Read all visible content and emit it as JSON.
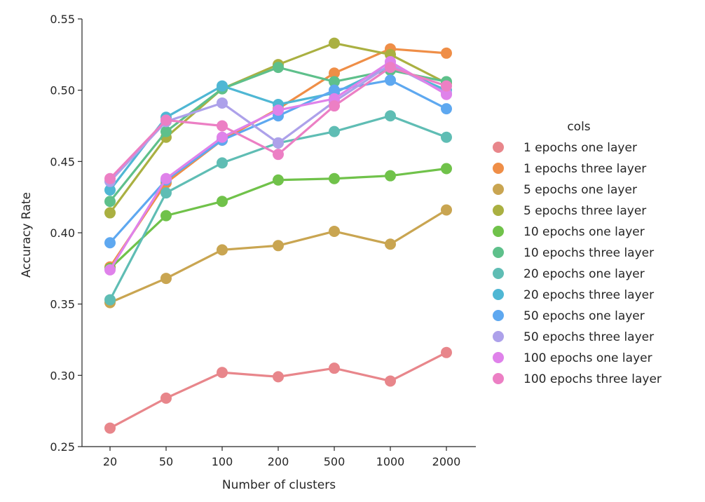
{
  "chart_data": {
    "type": "line",
    "x": [
      "20",
      "50",
      "100",
      "200",
      "500",
      "1000",
      "2000"
    ],
    "xlabel": "Number of clusters",
    "ylabel": "Accuracy Rate",
    "ylim": [
      0.25,
      0.55
    ],
    "yticks": [
      "0.25",
      "0.30",
      "0.35",
      "0.40",
      "0.45",
      "0.50",
      "0.55"
    ],
    "grid": false,
    "legend_title": "cols",
    "legend_position": "right",
    "series": [
      {
        "name": "1 epochs one layer",
        "color": "#e8868b",
        "values": [
          0.263,
          0.284,
          0.302,
          0.299,
          0.305,
          0.296,
          0.316
        ]
      },
      {
        "name": "1 epochs three layer",
        "color": "#ef8e47",
        "values": [
          0.376,
          0.435,
          0.465,
          0.487,
          0.512,
          0.529,
          0.526
        ]
      },
      {
        "name": "5 epochs one layer",
        "color": "#c9a551",
        "values": [
          0.351,
          0.368,
          0.388,
          0.391,
          0.401,
          0.392,
          0.416
        ]
      },
      {
        "name": "5 epochs three layer",
        "color": "#aab041",
        "values": [
          0.414,
          0.467,
          0.501,
          0.518,
          0.533,
          0.525,
          0.505
        ]
      },
      {
        "name": "10 epochs one layer",
        "color": "#70c24a",
        "values": [
          0.375,
          0.412,
          0.422,
          0.437,
          0.438,
          0.44,
          0.445
        ]
      },
      {
        "name": "10 epochs three layer",
        "color": "#5ec08b",
        "values": [
          0.422,
          0.471,
          0.501,
          0.516,
          0.506,
          0.514,
          0.506
        ]
      },
      {
        "name": "20 epochs one layer",
        "color": "#5fbdb4",
        "values": [
          0.353,
          0.428,
          0.449,
          0.463,
          0.471,
          0.482,
          0.467
        ]
      },
      {
        "name": "20 epochs three layer",
        "color": "#4fb7d4",
        "values": [
          0.43,
          0.481,
          0.503,
          0.49,
          0.498,
          0.517,
          0.5
        ]
      },
      {
        "name": "50 epochs one layer",
        "color": "#5ea8f0",
        "values": [
          0.393,
          0.437,
          0.465,
          0.482,
          0.5,
          0.507,
          0.487
        ]
      },
      {
        "name": "50 epochs three layer",
        "color": "#ada1ea",
        "values": [
          0.436,
          0.478,
          0.491,
          0.463,
          0.492,
          0.518,
          0.498
        ]
      },
      {
        "name": "100 epochs one layer",
        "color": "#df82ea",
        "values": [
          0.374,
          0.438,
          0.467,
          0.486,
          0.494,
          0.52,
          0.497
        ]
      },
      {
        "name": "100 epochs three layer",
        "color": "#ec7fc4",
        "values": [
          0.438,
          0.479,
          0.475,
          0.455,
          0.489,
          0.516,
          0.503
        ]
      }
    ]
  }
}
